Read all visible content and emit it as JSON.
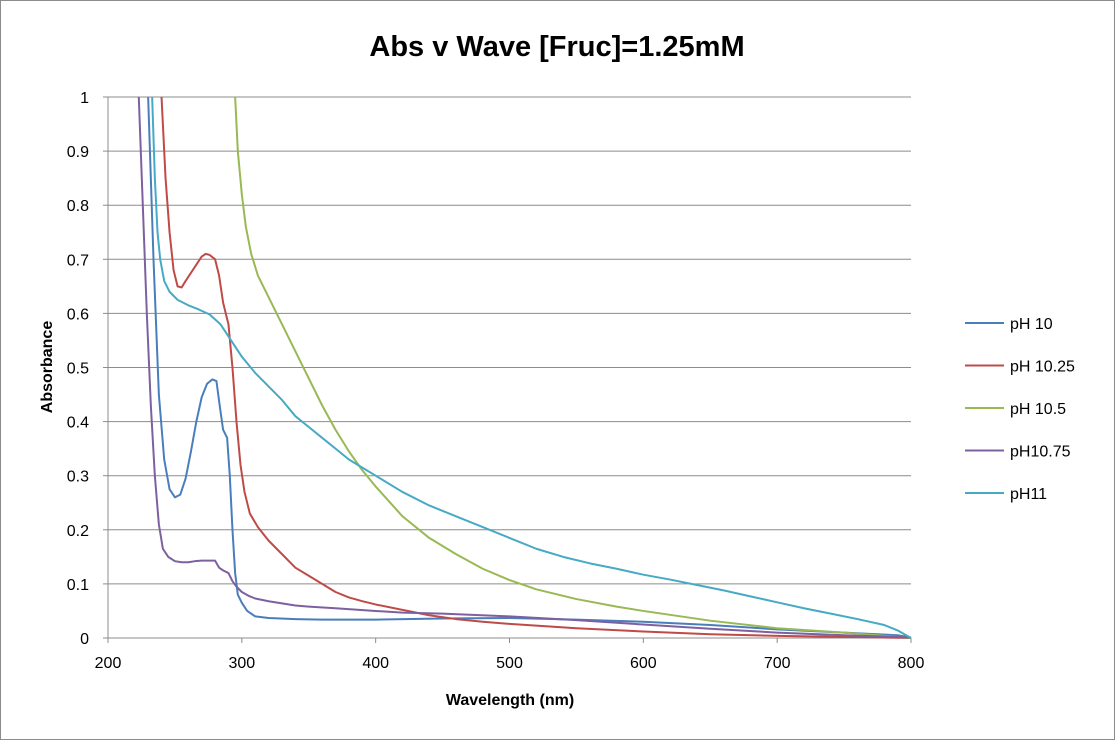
{
  "chart_data": {
    "type": "line",
    "title": "Abs v Wave [Fruc]=1.25mM",
    "xlabel": "Wavelength (nm)",
    "ylabel": "Absorbance",
    "xlim": [
      200,
      800
    ],
    "ylim": [
      0,
      1
    ],
    "x_ticks": [
      200,
      300,
      400,
      500,
      600,
      700,
      800
    ],
    "y_ticks": [
      0,
      0.1,
      0.2,
      0.3,
      0.4,
      0.5,
      0.6,
      0.7,
      0.8,
      0.9,
      1
    ],
    "x_tick_labels": [
      "200",
      "300",
      "400",
      "500",
      "600",
      "700",
      "800"
    ],
    "y_tick_labels": [
      "0",
      "0.1",
      "0.2",
      "0.3",
      "0.4",
      "0.5",
      "0.6",
      "0.7",
      "0.8",
      "0.9",
      "1"
    ],
    "grid": "horizontal",
    "legend_position": "right",
    "series": [
      {
        "name": "pH 10",
        "color": "#4a7ebb",
        "points": [
          [
            230,
            1.0
          ],
          [
            234,
            0.7
          ],
          [
            238,
            0.45
          ],
          [
            242,
            0.33
          ],
          [
            246,
            0.275
          ],
          [
            250,
            0.26
          ],
          [
            254,
            0.265
          ],
          [
            258,
            0.295
          ],
          [
            262,
            0.345
          ],
          [
            266,
            0.4
          ],
          [
            270,
            0.445
          ],
          [
            274,
            0.47
          ],
          [
            278,
            0.478
          ],
          [
            281,
            0.475
          ],
          [
            284,
            0.42
          ],
          [
            286,
            0.385
          ],
          [
            289,
            0.37
          ],
          [
            291,
            0.3
          ],
          [
            293,
            0.2
          ],
          [
            295,
            0.12
          ],
          [
            297,
            0.08
          ],
          [
            300,
            0.065
          ],
          [
            304,
            0.05
          ],
          [
            310,
            0.04
          ],
          [
            320,
            0.037
          ],
          [
            340,
            0.035
          ],
          [
            360,
            0.034
          ],
          [
            400,
            0.034
          ],
          [
            450,
            0.036
          ],
          [
            500,
            0.037
          ],
          [
            550,
            0.034
          ],
          [
            600,
            0.03
          ],
          [
            650,
            0.024
          ],
          [
            700,
            0.016
          ],
          [
            750,
            0.01
          ],
          [
            790,
            0.005
          ],
          [
            800,
            0.001
          ]
        ]
      },
      {
        "name": "pH 10.25",
        "color": "#be4b48",
        "points": [
          [
            240,
            1.0
          ],
          [
            243,
            0.85
          ],
          [
            246,
            0.75
          ],
          [
            249,
            0.68
          ],
          [
            252,
            0.65
          ],
          [
            255,
            0.648
          ],
          [
            258,
            0.66
          ],
          [
            262,
            0.675
          ],
          [
            266,
            0.69
          ],
          [
            270,
            0.705
          ],
          [
            273,
            0.71
          ],
          [
            276,
            0.708
          ],
          [
            280,
            0.7
          ],
          [
            283,
            0.67
          ],
          [
            286,
            0.62
          ],
          [
            290,
            0.58
          ],
          [
            293,
            0.5
          ],
          [
            296,
            0.4
          ],
          [
            299,
            0.32
          ],
          [
            302,
            0.27
          ],
          [
            306,
            0.23
          ],
          [
            312,
            0.205
          ],
          [
            320,
            0.18
          ],
          [
            330,
            0.155
          ],
          [
            340,
            0.13
          ],
          [
            350,
            0.115
          ],
          [
            360,
            0.1
          ],
          [
            370,
            0.085
          ],
          [
            380,
            0.075
          ],
          [
            390,
            0.068
          ],
          [
            400,
            0.062
          ],
          [
            420,
            0.052
          ],
          [
            440,
            0.042
          ],
          [
            460,
            0.035
          ],
          [
            480,
            0.03
          ],
          [
            500,
            0.026
          ],
          [
            550,
            0.018
          ],
          [
            600,
            0.012
          ],
          [
            650,
            0.007
          ],
          [
            700,
            0.004
          ],
          [
            750,
            0.002
          ],
          [
            800,
            0.0
          ]
        ]
      },
      {
        "name": "pH 10.5",
        "color": "#98b954",
        "points": [
          [
            295,
            1.0
          ],
          [
            297,
            0.9
          ],
          [
            300,
            0.82
          ],
          [
            303,
            0.76
          ],
          [
            307,
            0.71
          ],
          [
            312,
            0.67
          ],
          [
            320,
            0.63
          ],
          [
            330,
            0.58
          ],
          [
            340,
            0.53
          ],
          [
            350,
            0.48
          ],
          [
            360,
            0.43
          ],
          [
            370,
            0.385
          ],
          [
            380,
            0.345
          ],
          [
            390,
            0.31
          ],
          [
            400,
            0.28
          ],
          [
            420,
            0.225
          ],
          [
            440,
            0.185
          ],
          [
            460,
            0.155
          ],
          [
            480,
            0.128
          ],
          [
            500,
            0.107
          ],
          [
            520,
            0.09
          ],
          [
            550,
            0.072
          ],
          [
            580,
            0.058
          ],
          [
            600,
            0.05
          ],
          [
            650,
            0.032
          ],
          [
            700,
            0.018
          ],
          [
            750,
            0.01
          ],
          [
            800,
            0.0
          ]
        ]
      },
      {
        "name": "pH10.75",
        "color": "#7d60a0",
        "points": [
          [
            223,
            1.0
          ],
          [
            226,
            0.8
          ],
          [
            229,
            0.6
          ],
          [
            232,
            0.43
          ],
          [
            235,
            0.3
          ],
          [
            238,
            0.21
          ],
          [
            241,
            0.165
          ],
          [
            245,
            0.15
          ],
          [
            250,
            0.142
          ],
          [
            255,
            0.14
          ],
          [
            260,
            0.14
          ],
          [
            265,
            0.142
          ],
          [
            270,
            0.143
          ],
          [
            275,
            0.143
          ],
          [
            280,
            0.143
          ],
          [
            283,
            0.13
          ],
          [
            286,
            0.125
          ],
          [
            290,
            0.12
          ],
          [
            293,
            0.105
          ],
          [
            296,
            0.095
          ],
          [
            300,
            0.085
          ],
          [
            305,
            0.078
          ],
          [
            310,
            0.073
          ],
          [
            320,
            0.068
          ],
          [
            330,
            0.064
          ],
          [
            340,
            0.06
          ],
          [
            350,
            0.058
          ],
          [
            370,
            0.055
          ],
          [
            400,
            0.05
          ],
          [
            420,
            0.047
          ],
          [
            450,
            0.045
          ],
          [
            500,
            0.04
          ],
          [
            550,
            0.033
          ],
          [
            600,
            0.025
          ],
          [
            650,
            0.017
          ],
          [
            700,
            0.01
          ],
          [
            750,
            0.005
          ],
          [
            800,
            0.001
          ]
        ]
      },
      {
        "name": "pH11",
        "color": "#46aac5",
        "points": [
          [
            233,
            1.0
          ],
          [
            235,
            0.85
          ],
          [
            237,
            0.75
          ],
          [
            239,
            0.7
          ],
          [
            242,
            0.66
          ],
          [
            246,
            0.64
          ],
          [
            252,
            0.625
          ],
          [
            260,
            0.615
          ],
          [
            268,
            0.607
          ],
          [
            276,
            0.598
          ],
          [
            284,
            0.58
          ],
          [
            292,
            0.55
          ],
          [
            300,
            0.52
          ],
          [
            310,
            0.49
          ],
          [
            320,
            0.465
          ],
          [
            330,
            0.44
          ],
          [
            340,
            0.41
          ],
          [
            350,
            0.39
          ],
          [
            360,
            0.37
          ],
          [
            370,
            0.35
          ],
          [
            380,
            0.33
          ],
          [
            390,
            0.315
          ],
          [
            400,
            0.3
          ],
          [
            420,
            0.27
          ],
          [
            440,
            0.245
          ],
          [
            460,
            0.225
          ],
          [
            480,
            0.205
          ],
          [
            500,
            0.185
          ],
          [
            520,
            0.165
          ],
          [
            540,
            0.15
          ],
          [
            560,
            0.138
          ],
          [
            580,
            0.128
          ],
          [
            600,
            0.117
          ],
          [
            620,
            0.108
          ],
          [
            640,
            0.098
          ],
          [
            660,
            0.088
          ],
          [
            680,
            0.077
          ],
          [
            700,
            0.066
          ],
          [
            720,
            0.055
          ],
          [
            740,
            0.045
          ],
          [
            760,
            0.035
          ],
          [
            780,
            0.024
          ],
          [
            790,
            0.014
          ],
          [
            800,
            0.0
          ]
        ]
      }
    ]
  }
}
